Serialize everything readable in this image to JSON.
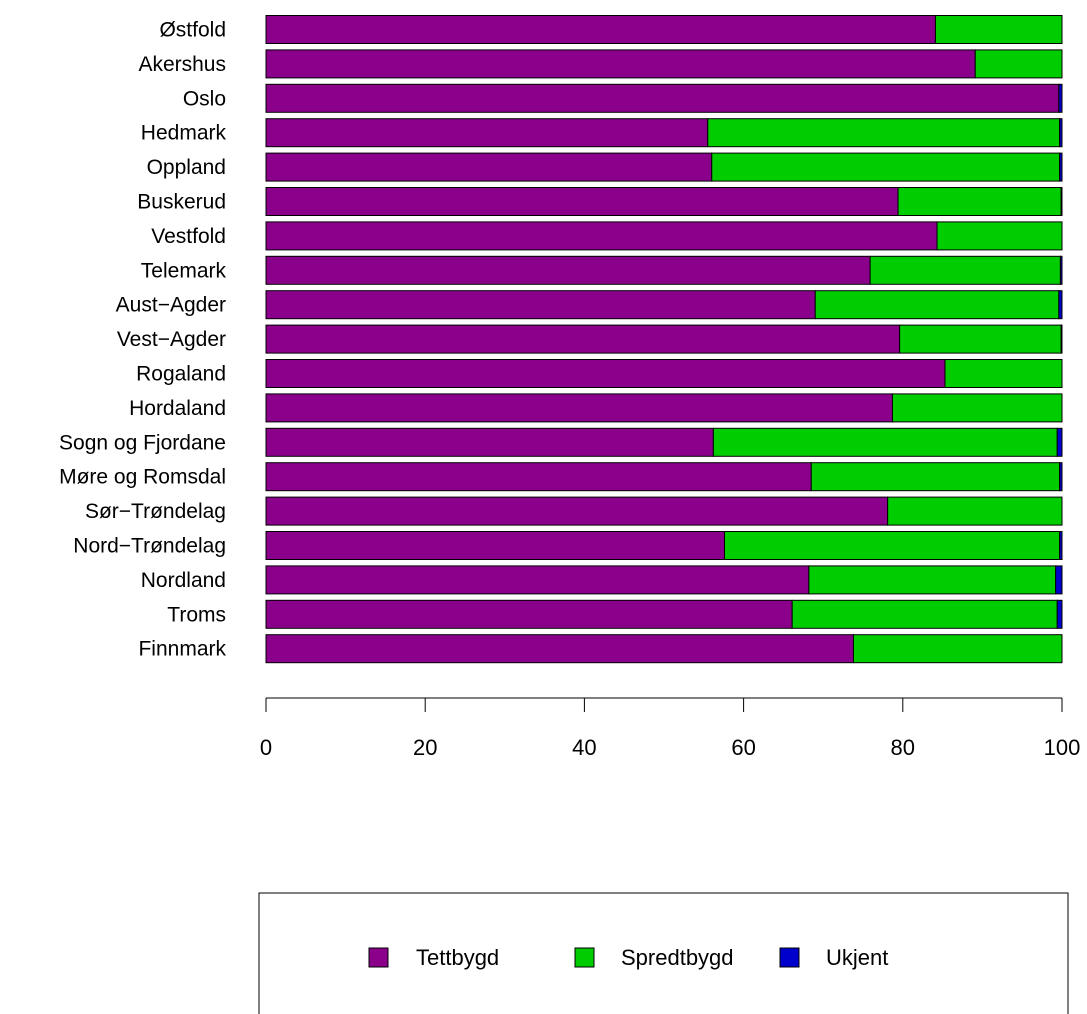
{
  "chart_data": {
    "type": "bar",
    "orientation": "horizontal",
    "stacked": true,
    "categories": [
      "Østfold",
      "Akershus",
      "Oslo",
      "Hedmark",
      "Oppland",
      "Buskerud",
      "Vestfold",
      "Telemark",
      "Aust−Agder",
      "Vest−Agder",
      "Rogaland",
      "Hordaland",
      "Sogn og Fjordane",
      "Møre og Romsdal",
      "Sør−Trøndelag",
      "Nord−Trøndelag",
      "Nordland",
      "Troms",
      "Finnmark"
    ],
    "series": [
      {
        "name": "Tettbygd",
        "color": "#8B008B",
        "values": [
          84.1,
          89.1,
          99.6,
          55.5,
          56.0,
          79.4,
          84.3,
          75.9,
          69.0,
          79.6,
          85.3,
          78.7,
          56.2,
          68.5,
          78.1,
          57.6,
          68.2,
          66.1,
          73.8
        ]
      },
      {
        "name": "Spredtbygd",
        "color": "#00CD00",
        "values": [
          15.9,
          10.9,
          0.0,
          44.2,
          43.7,
          20.5,
          15.7,
          23.9,
          30.6,
          20.3,
          14.7,
          21.3,
          43.2,
          31.2,
          21.9,
          42.1,
          31.0,
          33.3,
          26.2
        ]
      },
      {
        "name": "Ukjent",
        "color": "#0000CD",
        "values": [
          0.0,
          0.0,
          0.4,
          0.3,
          0.3,
          0.1,
          0.0,
          0.2,
          0.4,
          0.1,
          0.0,
          0.0,
          0.6,
          0.3,
          0.0,
          0.3,
          0.8,
          0.6,
          0.0
        ]
      }
    ],
    "xlim": [
      0,
      100
    ],
    "xticks": [
      0,
      20,
      40,
      60,
      80,
      100
    ],
    "grid": false,
    "legend_position": "bottom"
  }
}
